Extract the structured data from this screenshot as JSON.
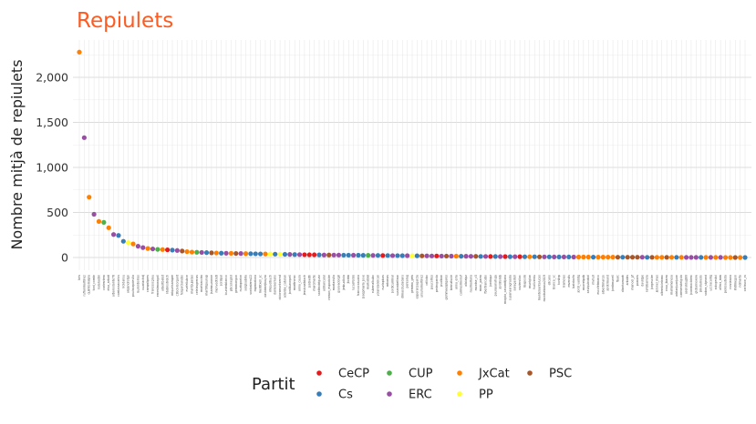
{
  "chart_data": {
    "type": "scatter",
    "title": "Repiulets",
    "ylabel": "Nombre mitjà de repiulets",
    "xlabel": "",
    "ylim": [
      0,
      2400
    ],
    "yticks": [
      0,
      500,
      1000,
      1500,
      2000
    ],
    "ytick_labels": [
      "0",
      "500",
      "1,000",
      "1,500",
      "2,000"
    ],
    "grid": true,
    "legend_title": "Partit",
    "legend_position": "bottom",
    "colors": {
      "CeCP": "#e41a1c",
      "Cs": "#377eb8",
      "CUP": "#4daf4a",
      "ERC": "#984ea3",
      "JxCat": "#ff7f00",
      "PP": "#ffff33",
      "PSC": "#a65628"
    },
    "legend": [
      {
        "party": "CeCP",
        "label": "CeCP"
      },
      {
        "party": "Cs",
        "label": "Cs"
      },
      {
        "party": "CUP",
        "label": "CUP"
      },
      {
        "party": "ERC",
        "label": "ERC"
      },
      {
        "party": "JxCat",
        "label": "JxCat"
      },
      {
        "party": "PP",
        "label": "PP"
      },
      {
        "party": "PSC",
        "label": "PSC"
      }
    ],
    "points": [
      {
        "name": "krls",
        "party": "JxCat",
        "y": 2280
      },
      {
        "name": "rufianmartinez",
        "party": "ERC",
        "y": 1330
      },
      {
        "name": "quimtorraipla",
        "party": "JxCat",
        "y": 670
      },
      {
        "name": "toni_comin",
        "party": "ERC",
        "y": 480
      },
      {
        "name": "naiaraebn",
        "party": "JxCat",
        "y": 400
      },
      {
        "name": "carlesriera",
        "party": "CUP",
        "y": 390
      },
      {
        "name": "elsa_artadi",
        "party": "JxCat",
        "y": 330
      },
      {
        "name": "albanodante76",
        "party": "ERC",
        "y": 255
      },
      {
        "name": "carrizosacarlos",
        "party": "Cs",
        "y": 245
      },
      {
        "name": "lroldansu",
        "party": "Cs",
        "y": 180
      },
      {
        "name": "alejandrotgn",
        "party": "PP",
        "y": 165
      },
      {
        "name": "paulacapdevila",
        "party": "JxCat",
        "y": 150
      },
      {
        "name": "laurenborras",
        "party": "ERC",
        "y": 125
      },
      {
        "name": "ouariachdj",
        "party": "ERC",
        "y": 110
      },
      {
        "name": "campslipres",
        "party": "JxCat",
        "y": 100
      },
      {
        "name": "francescgrau",
        "party": "ERC",
        "y": 95
      },
      {
        "name": "ernestmaragall",
        "party": "CUP",
        "y": 90
      },
      {
        "name": "albertbatet",
        "party": "JxCat",
        "y": 88
      },
      {
        "name": "ntabrostreich",
        "party": "CeCP",
        "y": 85
      },
      {
        "name": "miquelsamper",
        "party": "Cs",
        "y": 82
      },
      {
        "name": "c3bcivicorgant",
        "party": "ERC",
        "y": 78
      },
      {
        "name": "fergarcianebo",
        "party": "PSC",
        "y": 72
      },
      {
        "name": "evafeliubcn",
        "party": "JxCat",
        "y": 65
      },
      {
        "name": "manfpujadas",
        "party": "JxCat",
        "y": 60
      },
      {
        "name": "celelasgrenas",
        "party": "CUP",
        "y": 58
      },
      {
        "name": "martarovira",
        "party": "ERC",
        "y": 56
      },
      {
        "name": "martirigaunap",
        "party": "Cs",
        "y": 54
      },
      {
        "name": "jsamsuzanne",
        "party": "PSC",
        "y": 52
      },
      {
        "name": "monvedtreti",
        "party": "JxCat",
        "y": 50
      },
      {
        "name": "jorsipal",
        "party": "Cs",
        "y": 48
      },
      {
        "name": "lourdesblanco",
        "party": "ERC",
        "y": 47
      },
      {
        "name": "pbcenegroi",
        "party": "JxCat",
        "y": 46
      },
      {
        "name": "gemmaegon",
        "party": "PSC",
        "y": 45
      },
      {
        "name": "nuriaparlon",
        "party": "ERC",
        "y": 44
      },
      {
        "name": "sergisabria",
        "party": "JxCat",
        "y": 43
      },
      {
        "name": "soniasierra22",
        "party": "Cs",
        "y": 42
      },
      {
        "name": "mpmariona",
        "party": "Cs",
        "y": 41
      },
      {
        "name": "mertitxell_sc",
        "party": "Cs",
        "y": 40
      },
      {
        "name": "davidmejiaayra",
        "party": "JxCat",
        "y": 39
      },
      {
        "name": "miquelbuch",
        "party": "PP",
        "y": 38
      },
      {
        "name": "danielserrano",
        "party": "Cs",
        "y": 37
      },
      {
        "name": "dolorsmontserrat",
        "party": "PP",
        "y": 36
      },
      {
        "name": "adanba_catalan",
        "party": "Cs",
        "y": 35
      },
      {
        "name": "jordituronpell",
        "party": "ERC",
        "y": 34
      },
      {
        "name": "maritronsc",
        "party": "Cs",
        "y": 33
      },
      {
        "name": "anna_caula",
        "party": "ERC",
        "y": 32
      },
      {
        "name": "jessicaalbiach",
        "party": "CeCP",
        "y": 31
      },
      {
        "name": "jordiwith",
        "party": "CeCP",
        "y": 30
      },
      {
        "name": "marcmarte",
        "party": "CeCP",
        "y": 30
      },
      {
        "name": "santirodriguez",
        "party": "Cs",
        "y": 29
      },
      {
        "name": "adriancaral",
        "party": "ERC",
        "y": 28
      },
      {
        "name": "ramon_espadaler",
        "party": "PSC",
        "y": 28
      },
      {
        "name": "martadvila",
        "party": "ERC",
        "y": 27
      },
      {
        "name": "gsalvadorgir",
        "party": "ERC",
        "y": 27
      },
      {
        "name": "jmbuoliola",
        "party": "Cs",
        "y": 26
      },
      {
        "name": "jtorim",
        "party": "Cs",
        "y": 26
      },
      {
        "name": "lucasfersis",
        "party": "ERC",
        "y": 25
      },
      {
        "name": "francocaruana",
        "party": "Cs",
        "y": 25
      },
      {
        "name": "josepmaria_jove",
        "party": "Cs",
        "y": 24
      },
      {
        "name": "marissbisi",
        "party": "CUP",
        "y": 24
      },
      {
        "name": "rubenalkubo",
        "party": "ERC",
        "y": 23
      },
      {
        "name": "yolandadelcan",
        "party": "Cs",
        "y": 23
      },
      {
        "name": "nuriapicas",
        "party": "CeCP",
        "y": 22
      },
      {
        "name": "mtomas",
        "party": "Cs",
        "y": 22
      },
      {
        "name": "jordicuminal",
        "party": "ERC",
        "y": 21
      },
      {
        "name": "susanabeltran",
        "party": "Cs",
        "y": 21
      },
      {
        "name": "dimasciudadans",
        "party": "Cs",
        "y": 20
      },
      {
        "name": "perearag",
        "party": "ERC",
        "y": 20
      },
      {
        "name": "gemma_geis",
        "party": "PP",
        "y": 19
      },
      {
        "name": "esperanzagarcia",
        "party": "Cs",
        "y": 19
      },
      {
        "name": "ursullamartinez",
        "party": "PSC",
        "y": 18
      },
      {
        "name": "crillobo",
        "party": "ERC",
        "y": 18
      },
      {
        "name": "paucortes",
        "party": "ERC",
        "y": 17
      },
      {
        "name": "pedrogarcia",
        "party": "CeCP",
        "y": 17
      },
      {
        "name": "pvalban",
        "party": "ERC",
        "y": 16
      },
      {
        "name": "gemmaespigares",
        "party": "PSC",
        "y": 16
      },
      {
        "name": "bernatsole",
        "party": "ERC",
        "y": 15
      },
      {
        "name": "anna_erra",
        "party": "JxCat",
        "y": 15
      },
      {
        "name": "carmesimonaf",
        "party": "Cs",
        "y": 14
      },
      {
        "name": "alicialpz",
        "party": "ERC",
        "y": 14
      },
      {
        "name": "raulmariana",
        "party": "ERC",
        "y": 13
      },
      {
        "name": "montse_c5",
        "party": "PSC",
        "y": 13
      },
      {
        "name": "marc_parra",
        "party": "Cs",
        "y": 12
      },
      {
        "name": "fbertrancabo",
        "party": "ERC",
        "y": 12
      },
      {
        "name": "jordiopz",
        "party": "CeCP",
        "y": 11
      },
      {
        "name": "paulasanahuja",
        "party": "Cs",
        "y": 11
      },
      {
        "name": "jordiromb",
        "party": "ERC",
        "y": 10
      },
      {
        "name": "magda_casamitjana",
        "party": "CeCP",
        "y": 10
      },
      {
        "name": "susanaaragrassia",
        "party": "Cs",
        "y": 9
      },
      {
        "name": "saragastell",
        "party": "ERC",
        "y": 9
      },
      {
        "name": "xaviercllac",
        "party": "CeCP",
        "y": 9
      },
      {
        "name": "ilsaposm",
        "party": "Cs",
        "y": 8
      },
      {
        "name": "muniglan",
        "party": "JxCat",
        "y": 8
      },
      {
        "name": "fvallverdu",
        "party": "Cs",
        "y": 8
      },
      {
        "name": "mantelsantalucas",
        "party": "PSC",
        "y": 7
      },
      {
        "name": "montsebassa2019",
        "party": "ERC",
        "y": 7
      },
      {
        "name": "elicano",
        "party": "Cs",
        "y": 7
      },
      {
        "name": "blanca_vc",
        "party": "ERC",
        "y": 6
      },
      {
        "name": "tonitrp",
        "party": "Cs",
        "y": 6
      },
      {
        "name": "iramolas",
        "party": "ERC",
        "y": 6
      },
      {
        "name": "mvendis",
        "party": "Cs",
        "y": 6
      },
      {
        "name": "baixiaofa",
        "party": "ERC",
        "y": 5
      },
      {
        "name": "jordi_vaddig",
        "party": "JxCat",
        "y": 5
      },
      {
        "name": "morretpdb",
        "party": "JxCat",
        "y": 5
      },
      {
        "name": "xaviquinabal",
        "party": "JxCat",
        "y": 5
      },
      {
        "name": "mvlluli",
        "party": "Cs",
        "y": 4
      },
      {
        "name": "escofetmarco",
        "party": "JxCat",
        "y": 4
      },
      {
        "name": "albertrmanzo",
        "party": "JxCat",
        "y": 4
      },
      {
        "name": "jorstrmand",
        "party": "JxCat",
        "y": 4
      },
      {
        "name": "jordimunell",
        "party": "JxCat",
        "y": 4
      },
      {
        "name": "fbarc",
        "party": "PSC",
        "y": 3
      },
      {
        "name": "dianhomarh",
        "party": "Cs",
        "y": 3
      },
      {
        "name": "arbatrs",
        "party": "PSC",
        "y": 3
      },
      {
        "name": "manoel_pf",
        "party": "PSC",
        "y": 3
      },
      {
        "name": "parraes",
        "party": "PSC",
        "y": 3
      },
      {
        "name": "davidpe",
        "party": "ERC",
        "y": 3
      },
      {
        "name": "rafelbarrera",
        "party": "Cs",
        "y": 2
      },
      {
        "name": "jorgesoler",
        "party": "PSC",
        "y": 2
      },
      {
        "name": "jeronel_mas",
        "party": "JxCat",
        "y": 2
      },
      {
        "name": "alternioleinmo",
        "party": "JxCat",
        "y": 2
      },
      {
        "name": "rosa_ibarra",
        "party": "PSC",
        "y": 2
      },
      {
        "name": "mariamenesa",
        "party": "JxCat",
        "y": 2
      },
      {
        "name": "adrianjuanjuan",
        "party": "Cs",
        "y": 2
      },
      {
        "name": "carmenstelgvia",
        "party": "JxCat",
        "y": 2
      },
      {
        "name": "asensidugbhi",
        "party": "ERC",
        "y": 1
      },
      {
        "name": "joanmavidero",
        "party": "ERC",
        "y": 1
      },
      {
        "name": "globalnewsw",
        "party": "ERC",
        "y": 1
      },
      {
        "name": "jmvilarnedo",
        "party": "Cs",
        "y": 1
      },
      {
        "name": "sabas_sigrand",
        "party": "JxCat",
        "y": 1
      },
      {
        "name": "uccracalrig",
        "party": "ERC",
        "y": 1
      },
      {
        "name": "xoiogestol",
        "party": "JxCat",
        "y": 1
      },
      {
        "name": "alferz_mm",
        "party": "ERC",
        "y": 1
      },
      {
        "name": "peresauteda",
        "party": "JxCat",
        "y": 0
      },
      {
        "name": "rorzlawna",
        "party": "JxCat",
        "y": 0
      },
      {
        "name": "imtimegon",
        "party": "PSC",
        "y": 0
      },
      {
        "name": "ndmarta",
        "party": "JxCat",
        "y": 0
      },
      {
        "name": "carlsson_cs",
        "party": "Cs",
        "y": 0
      }
    ]
  }
}
